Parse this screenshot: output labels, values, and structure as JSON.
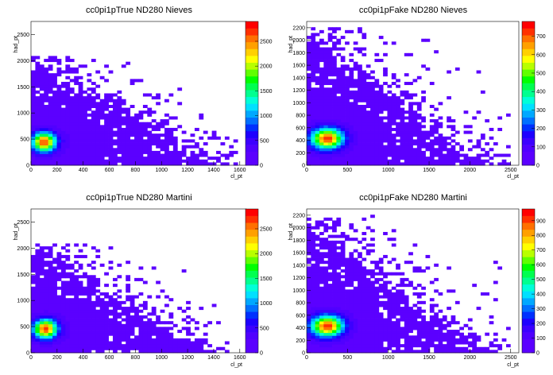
{
  "figure": {
    "background": "#ffffff"
  },
  "colorScale": [
    "#5b00ff",
    "#5b00ff",
    "#5000ff",
    "#3c00ff",
    "#1e00ff",
    "#0030ff",
    "#0070ff",
    "#00a8ff",
    "#00e0ff",
    "#00ffd8",
    "#00ff90",
    "#00ff50",
    "#00ff00",
    "#60ff00",
    "#b8ff00",
    "#ffff00",
    "#ffd000",
    "#ffa000",
    "#ff7000",
    "#ff3000",
    "#ff0000"
  ],
  "chart_data": [
    {
      "type": "heatmap",
      "title": "cc0pi1pTrue ND280 Nieves",
      "xlabel": "cl_pt",
      "ylabel": "had_pt",
      "xlim": [
        0,
        1650
      ],
      "ylim": [
        0,
        2750
      ],
      "xticks": [
        0,
        200,
        400,
        600,
        800,
        1000,
        1200,
        1400,
        1600
      ],
      "yticks": [
        0,
        500,
        1000,
        1500,
        2000,
        2500
      ],
      "zmax": 2900,
      "zticks": [
        0,
        500,
        1000,
        1500,
        2000,
        2500
      ],
      "peak": [
        100,
        450
      ],
      "core_spread": [
        60,
        120
      ],
      "halo_spread": [
        280,
        380
      ],
      "extent": {
        "x": 1450,
        "y": 2100,
        "tail_x": 1600
      },
      "max_label": "~2900"
    },
    {
      "type": "heatmap",
      "title": "cc0pi1pFake ND280 Nieves",
      "xlabel": "cl_pt",
      "ylabel": "had_pt",
      "xlim": [
        0,
        2600
      ],
      "ylim": [
        0,
        2300
      ],
      "xticks": [
        0,
        500,
        1000,
        1500,
        2000,
        2500
      ],
      "yticks": [
        0,
        200,
        400,
        600,
        800,
        1000,
        1200,
        1400,
        1600,
        1800,
        2000,
        2200
      ],
      "zmax": 780,
      "zticks": [
        0,
        100,
        200,
        300,
        400,
        500,
        600,
        700
      ],
      "peak": [
        250,
        430
      ],
      "core_spread": [
        130,
        110
      ],
      "halo_spread": [
        420,
        380
      ],
      "extent": {
        "x": 2200,
        "y": 2200,
        "tail_x": 2500
      },
      "max_label": "~780"
    },
    {
      "type": "heatmap",
      "title": "cc0pi1pTrue ND280 Martini",
      "xlabel": "cl_pt",
      "ylabel": "had_pt",
      "xlim": [
        0,
        1650
      ],
      "ylim": [
        0,
        2750
      ],
      "xticks": [
        0,
        200,
        400,
        600,
        800,
        1000,
        1200,
        1400,
        1600
      ],
      "yticks": [
        0,
        500,
        1000,
        1500,
        2000,
        2500
      ],
      "zmax": 2900,
      "zticks": [
        0,
        500,
        1000,
        1500,
        2000,
        2500
      ],
      "peak": [
        110,
        460
      ],
      "core_spread": [
        60,
        120
      ],
      "halo_spread": [
        280,
        380
      ],
      "extent": {
        "x": 1450,
        "y": 2100,
        "tail_x": 1600
      },
      "max_label": "~2900"
    },
    {
      "type": "heatmap",
      "title": "cc0pi1pFake ND280 Martini",
      "xlabel": "cl_pt",
      "ylabel": "had_pt",
      "xlim": [
        0,
        2600
      ],
      "ylim": [
        0,
        2300
      ],
      "xticks": [
        0,
        500,
        1000,
        1500,
        2000,
        2500
      ],
      "yticks": [
        0,
        200,
        400,
        600,
        800,
        1000,
        1200,
        1400,
        1600,
        1800,
        2000,
        2200
      ],
      "zmax": 980,
      "zticks": [
        0,
        100,
        200,
        300,
        400,
        500,
        600,
        700,
        800,
        900
      ],
      "peak": [
        250,
        430
      ],
      "core_spread": [
        130,
        110
      ],
      "halo_spread": [
        420,
        380
      ],
      "extent": {
        "x": 2200,
        "y": 2200,
        "tail_x": 2500
      },
      "max_label": "~980"
    }
  ]
}
